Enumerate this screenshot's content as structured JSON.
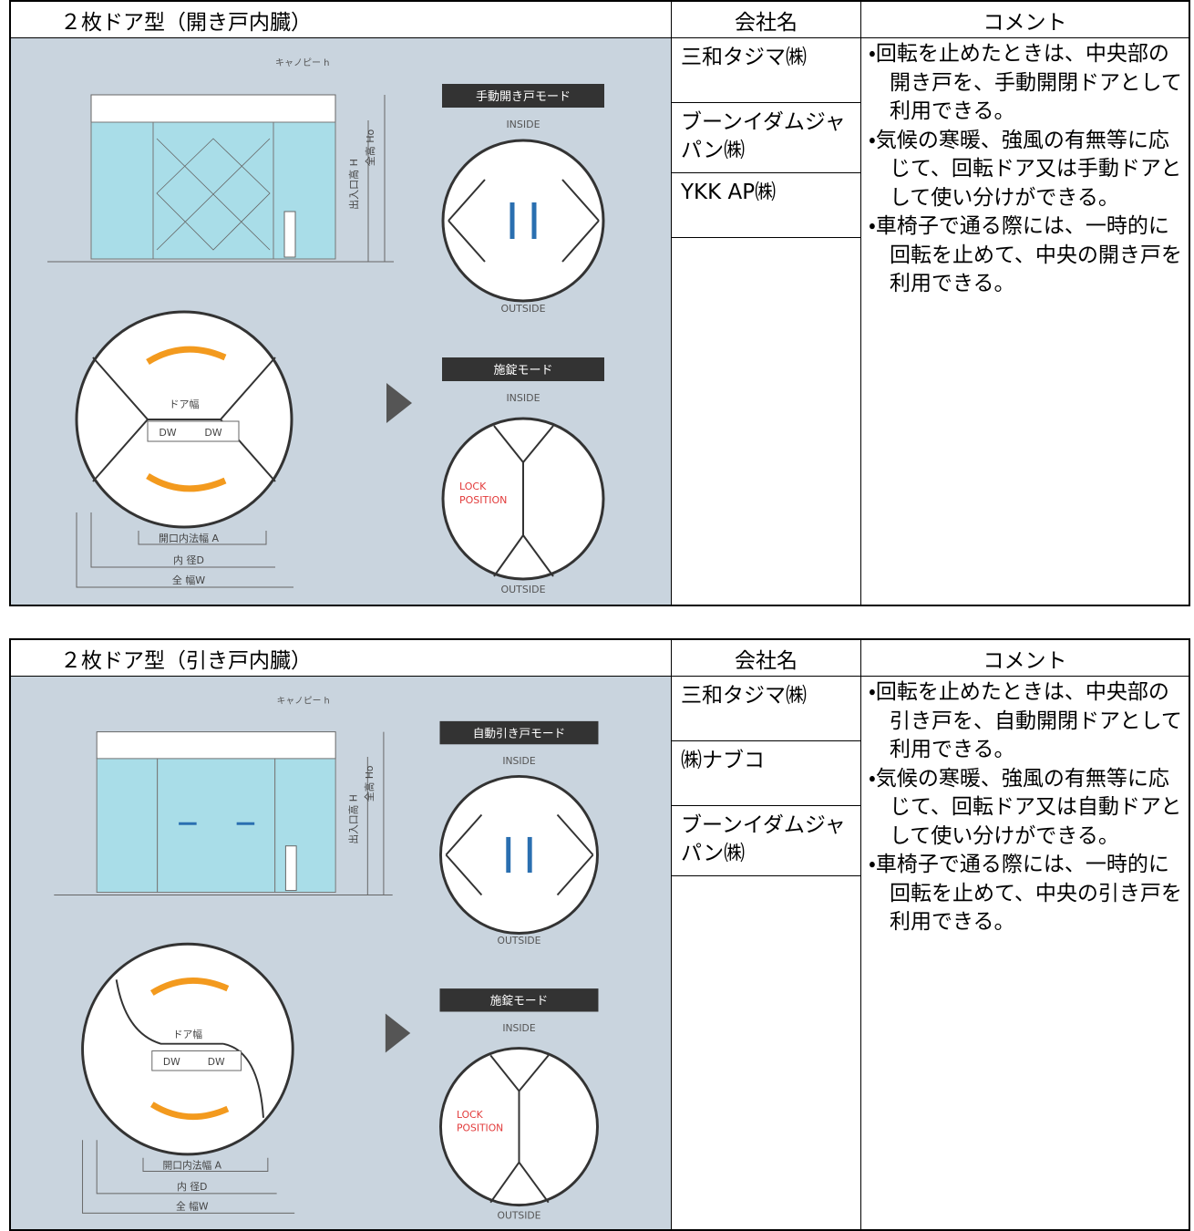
{
  "tables": [
    {
      "header": [
        "２枚ドア型（開き戸内臓）",
        "会社名",
        "コメント"
      ],
      "diagram": {
        "canopy": "キャノピー h",
        "height": "出入口高 H",
        "total_height": "全高 Ho",
        "mode1": "手動開き戸モード",
        "inside1": "INSIDE",
        "outside1": "OUTSIDE",
        "door_width": "ドア幅",
        "dw": [
          "DW",
          "DW"
        ],
        "mode2": "施錠モード",
        "inside2": "INSIDE",
        "outside2": "OUTSIDE",
        "lock": [
          "LOCK",
          "POSITION"
        ],
        "opening": "開口内法幅 A",
        "inner": "内 径D",
        "overall": "全 幅W"
      },
      "companies": [
        "三和タジマ㈱",
        "ブーンイダムジャパン㈱",
        "YKK AP㈱"
      ],
      "comments": [
        "・回転を止めたときは、中央部の開き戸を、手動開閉ドアとして利用できる。",
        "・気候の寒暖、強風の有無等に応じて、回転ドア又は手動ドアとして使い分けができる。",
        "・車椅子で通る際には、一時的に回転を止めて、中央の開き戸を利用できる。"
      ]
    },
    {
      "header": [
        "２枚ドア型（引き戸内臓）",
        "会社名",
        "コメント"
      ],
      "diagram": {
        "canopy": "キャノピー h",
        "height": "出入口高 H",
        "total_height": "全高 Ho",
        "mode1": "自動引き戸モード",
        "inside1": "INSIDE",
        "outside1": "OUTSIDE",
        "door_width": "ドア幅",
        "dw": [
          "DW",
          "DW"
        ],
        "mode2": "施錠モード",
        "inside2": "INSIDE",
        "outside2": "OUTSIDE",
        "lock": [
          "LOCK",
          "POSITION"
        ],
        "opening": "開口内法幅 A",
        "inner": "内 径D",
        "overall": "全 幅W"
      },
      "companies": [
        "三和タジマ㈱",
        "㈱ナブコ",
        "ブーンイダムジャパン㈱"
      ],
      "comments": [
        "・回転を止めたときは、中央部の引き戸を、自動開閉ドアとして利用できる。",
        "・気候の寒暖、強風の有無等に応じて、回転ドア又は自動ドアとして使い分けができる。",
        "・車椅子で通る際には、一時的に回転を止めて、中央の引き戸を利用できる。"
      ]
    }
  ]
}
